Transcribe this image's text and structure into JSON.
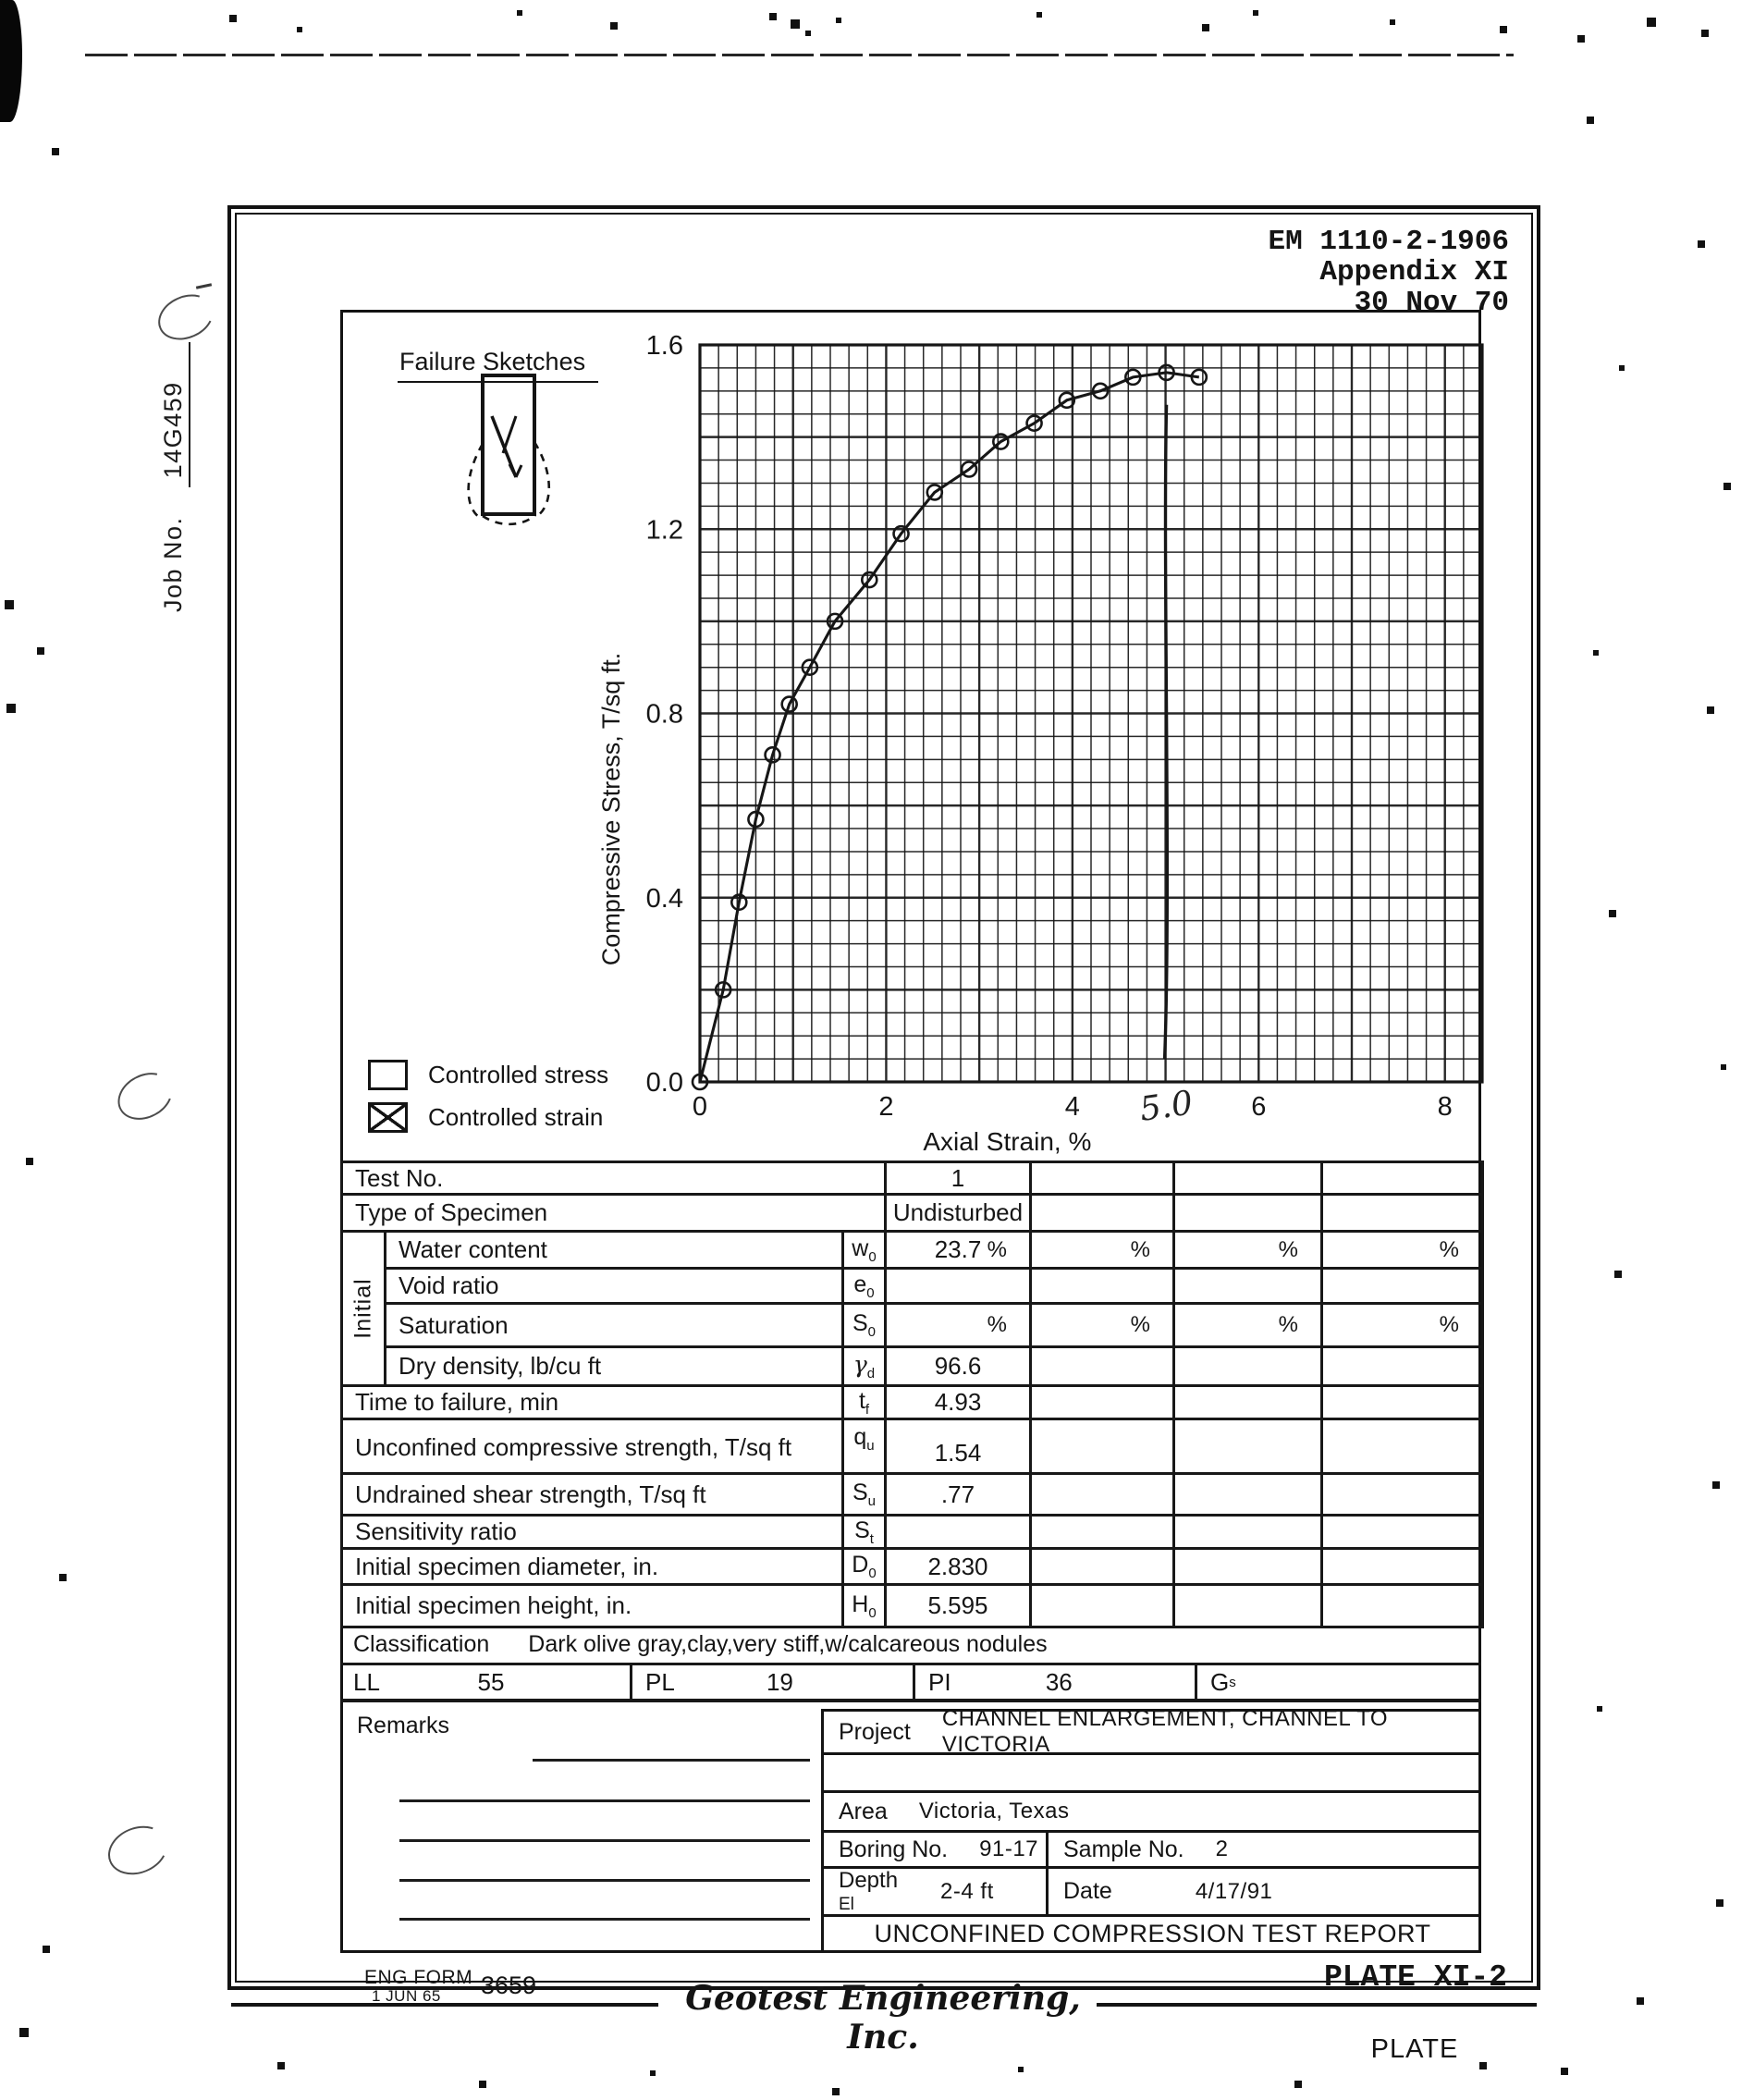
{
  "header": {
    "line1": "EM 1110-2-1906",
    "line2": "Appendix XI",
    "line3": "30 Nov 70"
  },
  "margin": {
    "job_label": "Job No.",
    "job_value": "14G459"
  },
  "chart": {
    "failure_sketches_title": "Failure Sketches",
    "legend": [
      {
        "label": "Controlled stress",
        "checked": false
      },
      {
        "label": "Controlled strain",
        "checked": true
      }
    ]
  },
  "chart_data": {
    "type": "line",
    "title": "",
    "xlabel": "Axial Strain, %",
    "ylabel": "Compressive Stress, T/sq ft.",
    "xlim": [
      0,
      8.4
    ],
    "ylim": [
      0,
      1.6
    ],
    "x_ticks": [
      0,
      2,
      4,
      6,
      8
    ],
    "y_ticks": [
      0.0,
      0.4,
      0.8,
      1.2,
      1.6
    ],
    "y_tick_labels": [
      "0.0",
      "0.4",
      "0.8",
      "1.2",
      "1.6"
    ],
    "grid": true,
    "grid_minor_x": 0.2,
    "grid_minor_y": 0.05,
    "series": [
      {
        "name": "unconfined compression stress-strain curve",
        "marker": "circle",
        "x": [
          0,
          0.25,
          0.42,
          0.6,
          0.78,
          0.96,
          1.18,
          1.45,
          1.82,
          2.16,
          2.52,
          2.89,
          3.23,
          3.59,
          3.94,
          4.3,
          4.65,
          5.01,
          5.36
        ],
        "y": [
          0,
          0.2,
          0.39,
          0.57,
          0.71,
          0.82,
          0.9,
          1.0,
          1.09,
          1.19,
          1.28,
          1.33,
          1.39,
          1.43,
          1.48,
          1.5,
          1.53,
          1.54,
          1.53
        ]
      }
    ],
    "failure_drop": {
      "x": 5.01,
      "y_top": 1.47,
      "y_bottom": 0.05
    },
    "annotation": {
      "text": "5.0",
      "x": 5.0,
      "below_axis": true,
      "style": "handwritten"
    }
  },
  "table": {
    "percent": "%",
    "initial_group_label": "Initial",
    "rows": [
      {
        "label": "Test No.",
        "values": [
          "1",
          "",
          "",
          ""
        ]
      },
      {
        "label": "Type of Specimen",
        "values": [
          "Undisturbed",
          "",
          "",
          ""
        ]
      },
      {
        "label": "Water content",
        "sym": "w",
        "sub": "0",
        "values": [
          "23.7",
          "",
          "",
          ""
        ]
      },
      {
        "label": "Void ratio",
        "sym": "e",
        "sub": "0",
        "values": [
          "",
          "",
          "",
          ""
        ]
      },
      {
        "label": "Saturation",
        "sym": "S",
        "sub": "0",
        "values": [
          "",
          "",
          "",
          ""
        ]
      },
      {
        "label": "Dry density, lb/cu ft",
        "sym": "γ",
        "sub": "d",
        "values": [
          "96.6",
          "",
          "",
          ""
        ]
      },
      {
        "label": "Time to failure, min",
        "sym": "t",
        "sub": "f",
        "values": [
          "4.93",
          "",
          "",
          ""
        ]
      },
      {
        "label": "Unconfined compressive strength, T/sq ft",
        "sym": "q",
        "sub": "u",
        "values": [
          "1.54",
          "",
          "",
          ""
        ]
      },
      {
        "label": "Undrained shear strength, T/sq ft",
        "sym": "S",
        "sub": "u",
        "values": [
          ".77",
          "",
          "",
          ""
        ]
      },
      {
        "label": "Sensitivity ratio",
        "sym": "S",
        "sub": "t",
        "values": [
          "",
          "",
          "",
          ""
        ]
      },
      {
        "label": "Initial specimen diameter, in.",
        "sym": "D",
        "sub": "0",
        "values": [
          "2.830",
          "",
          "",
          ""
        ]
      },
      {
        "label": "Initial specimen height, in.",
        "sym": "H",
        "sub": "0",
        "values": [
          "5.595",
          "",
          "",
          ""
        ]
      }
    ]
  },
  "classification": {
    "label": "Classification",
    "value": "Dark olive gray,clay,very stiff,w/calcareous nodules"
  },
  "atterberg": [
    {
      "label": "LL",
      "value": "55"
    },
    {
      "label": "PL",
      "value": "19"
    },
    {
      "label": "PI",
      "value": "36"
    },
    {
      "label": "G",
      "sub": "s",
      "value": ""
    }
  ],
  "remarks": {
    "label": "Remarks"
  },
  "project": {
    "project_label": "Project",
    "project_value": "CHANNEL ENLARGEMENT, CHANNEL TO VICTORIA",
    "area_label": "Area",
    "area_value": "Victoria, Texas",
    "boring_label": "Boring No.",
    "boring_value": "91-17",
    "sample_label": "Sample No.",
    "sample_value": "2",
    "depth_label": "Depth",
    "el_label": "El",
    "depth_value": "2-4 ft",
    "date_label": "Date",
    "date_value": "4/17/91",
    "report_title": "UNCONFINED COMPRESSION TEST REPORT"
  },
  "footer": {
    "form_label": "ENG FORM",
    "form_date": "1 JUN 65",
    "form_number": "3659",
    "plate_ref": "PLATE XI-2",
    "company": "Geotest Engineering, Inc.",
    "plate_word": "PLATE"
  },
  "ink_color": "#161616"
}
